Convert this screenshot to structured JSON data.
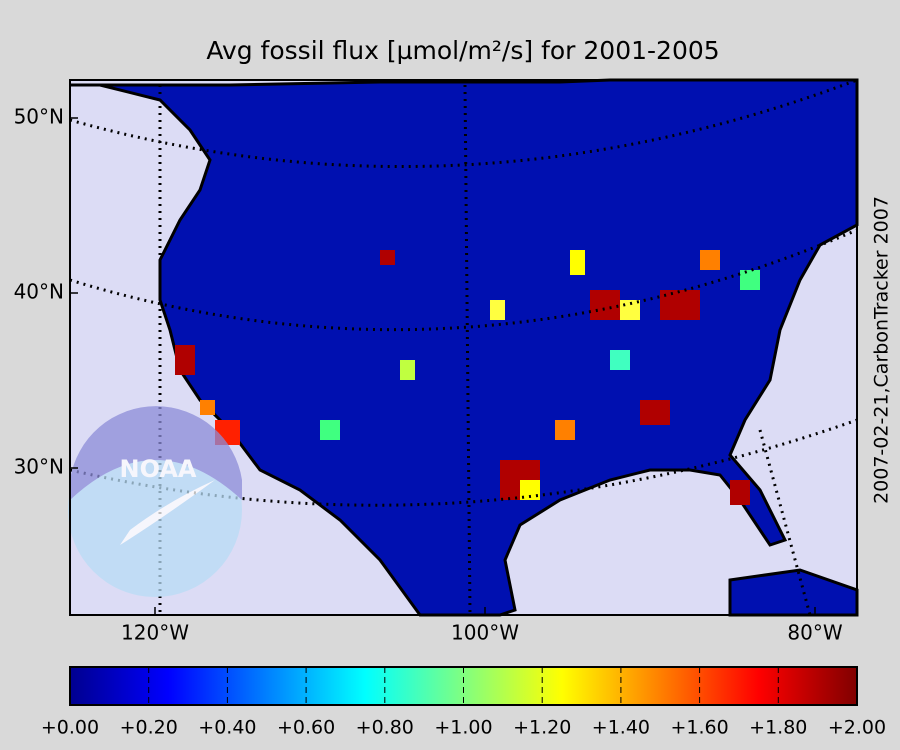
{
  "title": "Avg fossil flux [µmol/m²/s] for 2001-2005",
  "side_note": "2007-02-21,CarbonTracker 2007",
  "logo": "NOAA",
  "lat_ticks": [
    {
      "value": 50,
      "label": "50°N"
    },
    {
      "value": 40,
      "label": "40°N"
    },
    {
      "value": 30,
      "label": "30°N"
    }
  ],
  "lon_ticks": [
    {
      "value": -120,
      "label": "120°W"
    },
    {
      "value": -100,
      "label": "100°W"
    },
    {
      "value": -80,
      "label": "80°W"
    }
  ],
  "colorbar": {
    "lim": [
      0,
      2
    ],
    "ticks": [
      {
        "value": 0,
        "label": "+0.00"
      },
      {
        "value": 0.2,
        "label": "+0.20"
      },
      {
        "value": 0.4,
        "label": "+0.40"
      },
      {
        "value": 0.6,
        "label": "+0.60"
      },
      {
        "value": 0.8,
        "label": "+0.80"
      },
      {
        "value": 1.0,
        "label": "+1.00"
      },
      {
        "value": 1.2,
        "label": "+1.20"
      },
      {
        "value": 1.4,
        "label": "+1.40"
      },
      {
        "value": 1.6,
        "label": "+1.60"
      },
      {
        "value": 1.8,
        "label": "+1.80"
      },
      {
        "value": 2.0,
        "label": "+2.00"
      }
    ],
    "colormap": [
      "#00008f",
      "#0000ff",
      "#0080ff",
      "#00ffff",
      "#80ff80",
      "#ffff00",
      "#ff8000",
      "#ff0000",
      "#800000"
    ]
  }
}
